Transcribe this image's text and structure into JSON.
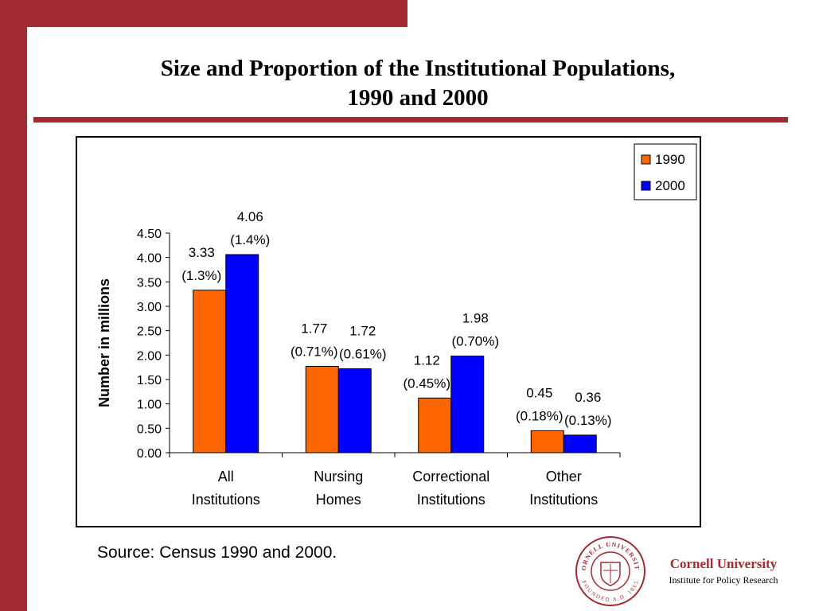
{
  "title_line1": "Size and Proportion of the Institutional Populations,",
  "title_line2": "1990 and 2000",
  "source": "Source: Census 1990 and 2000.",
  "brand": {
    "name": "Cornell University",
    "institute": "Institute for Policy Research",
    "seal_text_top": "CORNELL UNIVERSITY",
    "seal_text_bottom": "FOUNDED A.D. 1865",
    "color": "#a52a30"
  },
  "chart_data": {
    "type": "bar",
    "ylabel": "Number in millions",
    "ylim": [
      0,
      4.5
    ],
    "yticks": [
      "0.00",
      "0.50",
      "1.00",
      "1.50",
      "2.00",
      "2.50",
      "3.00",
      "3.50",
      "4.00",
      "4.50"
    ],
    "categories": [
      [
        "All",
        "Institutions"
      ],
      [
        "Nursing",
        "Homes"
      ],
      [
        "Correctional",
        "Institutions"
      ],
      [
        "Other",
        "Institutions"
      ]
    ],
    "legend_position": "top-right",
    "grid": false,
    "series": [
      {
        "name": "1990",
        "color": "#ff6600",
        "values": [
          3.33,
          1.77,
          1.12,
          0.45
        ],
        "value_labels": [
          "3.33",
          "1.77",
          "1.12",
          "0.45"
        ],
        "pct_labels": [
          "(1.3%)",
          "(0.71%)",
          "(0.45%)",
          "(0.18%)"
        ]
      },
      {
        "name": "2000",
        "color": "#0000ff",
        "values": [
          4.06,
          1.72,
          1.98,
          0.36
        ],
        "value_labels": [
          "4.06",
          "1.72",
          "1.98",
          "0.36"
        ],
        "pct_labels": [
          "(1.4%)",
          "(0.61%)",
          "(0.70%)",
          "(0.13%)"
        ]
      }
    ]
  }
}
